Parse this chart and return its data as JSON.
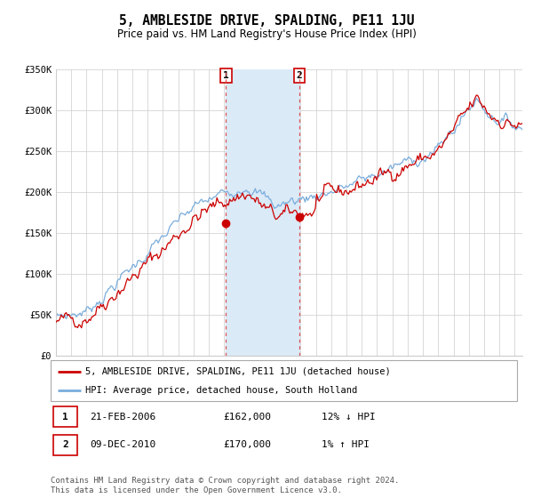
{
  "title": "5, AMBLESIDE DRIVE, SPALDING, PE11 1JU",
  "subtitle": "Price paid vs. HM Land Registry's House Price Index (HPI)",
  "x_start_year": 1995,
  "x_end_year": 2025,
  "y_min": 0,
  "y_max": 350000,
  "y_ticks": [
    0,
    50000,
    100000,
    150000,
    200000,
    250000,
    300000,
    350000
  ],
  "y_tick_labels": [
    "£0",
    "£50K",
    "£100K",
    "£150K",
    "£200K",
    "£250K",
    "£300K",
    "£350K"
  ],
  "hpi_color": "#7aaddc",
  "price_color": "#cc0000",
  "sale1_date": 2006.12,
  "sale1_price": 162000,
  "sale1_label": "1",
  "sale1_text": "21-FEB-2006",
  "sale1_pct": "12% ↓ HPI",
  "sale2_date": 2010.92,
  "sale2_price": 170000,
  "sale2_label": "2",
  "sale2_text": "09-DEC-2010",
  "sale2_pct": "1% ↑ HPI",
  "shade_color": "#dbeaf7",
  "dashed_color": "#dd4444",
  "legend_label1": "5, AMBLESIDE DRIVE, SPALDING, PE11 1JU (detached house)",
  "legend_label2": "HPI: Average price, detached house, South Holland",
  "footnote": "Contains HM Land Registry data © Crown copyright and database right 2024.\nThis data is licensed under the Open Government Licence v3.0.",
  "background_color": "#ffffff",
  "grid_color": "#cccccc",
  "title_fontsize": 10.5,
  "subtitle_fontsize": 8.5,
  "axis_label_fontsize": 7.5,
  "legend_fontsize": 7.5,
  "footnote_fontsize": 6.5
}
